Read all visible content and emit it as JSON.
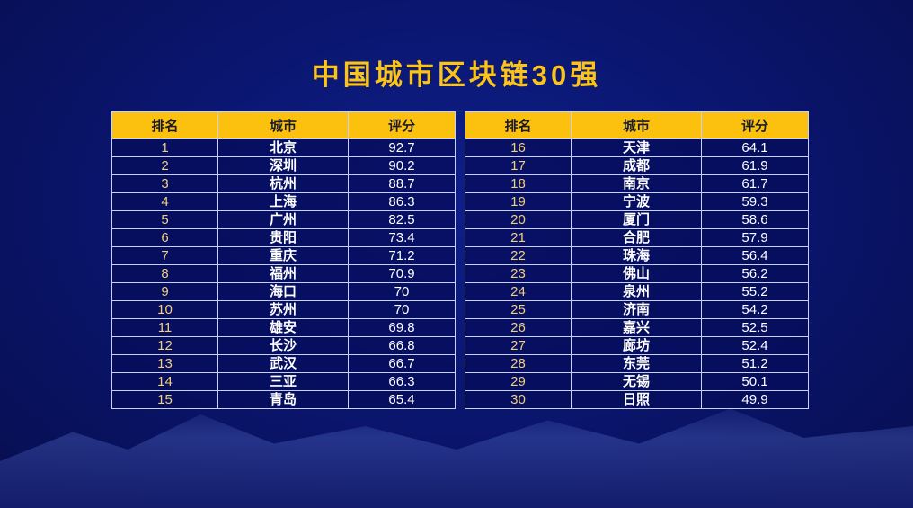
{
  "title": "中国城市区块链30强",
  "headers": [
    "排名",
    "城市",
    "评分"
  ],
  "left_rows": [
    [
      "1",
      "北京",
      "92.7"
    ],
    [
      "2",
      "深圳",
      "90.2"
    ],
    [
      "3",
      "杭州",
      "88.7"
    ],
    [
      "4",
      "上海",
      "86.3"
    ],
    [
      "5",
      "广州",
      "82.5"
    ],
    [
      "6",
      "贵阳",
      "73.4"
    ],
    [
      "7",
      "重庆",
      "71.2"
    ],
    [
      "8",
      "福州",
      "70.9"
    ],
    [
      "9",
      "海口",
      "70"
    ],
    [
      "10",
      "苏州",
      "70"
    ],
    [
      "11",
      "雄安",
      "69.8"
    ],
    [
      "12",
      "长沙",
      "66.8"
    ],
    [
      "13",
      "武汉",
      "66.7"
    ],
    [
      "14",
      "三亚",
      "66.3"
    ],
    [
      "15",
      "青岛",
      "65.4"
    ]
  ],
  "right_rows": [
    [
      "16",
      "天津",
      "64.1"
    ],
    [
      "17",
      "成都",
      "61.9"
    ],
    [
      "18",
      "南京",
      "61.7"
    ],
    [
      "19",
      "宁波",
      "59.3"
    ],
    [
      "20",
      "厦门",
      "58.6"
    ],
    [
      "21",
      "合肥",
      "57.9"
    ],
    [
      "22",
      "珠海",
      "56.4"
    ],
    [
      "23",
      "佛山",
      "56.2"
    ],
    [
      "24",
      "泉州",
      "55.2"
    ],
    [
      "25",
      "济南",
      "54.2"
    ],
    [
      "26",
      "嘉兴",
      "52.5"
    ],
    [
      "27",
      "廊坊",
      "52.4"
    ],
    [
      "28",
      "东莞",
      "51.2"
    ],
    [
      "29",
      "无锡",
      "50.1"
    ],
    [
      "30",
      "日照",
      "49.9"
    ]
  ],
  "colors": {
    "header_bg": "#fcc10e",
    "title": "#fcc417",
    "rank_text": "#f3cf7a",
    "background": "#0a1670"
  }
}
